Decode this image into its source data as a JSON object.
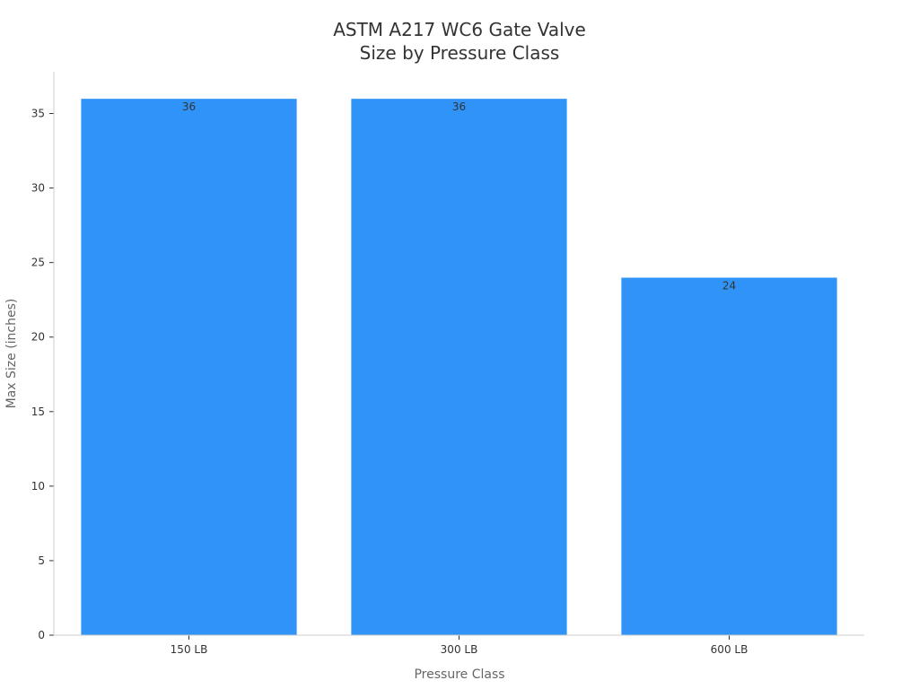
{
  "chart_data": {
    "type": "bar",
    "title_lines": [
      "ASTM A217 WC6 Gate Valve",
      "Size by Pressure Class"
    ],
    "xlabel": "Pressure Class",
    "ylabel": "Max Size (inches)",
    "categories": [
      "150 LB",
      "300 LB",
      "600 LB"
    ],
    "values": [
      36,
      36,
      24
    ],
    "ylim": [
      0,
      37.8
    ],
    "yticks": [
      0,
      5,
      10,
      15,
      20,
      25,
      30,
      35
    ],
    "bar_color": "#2f93f7",
    "grid": false,
    "legend": "none"
  }
}
